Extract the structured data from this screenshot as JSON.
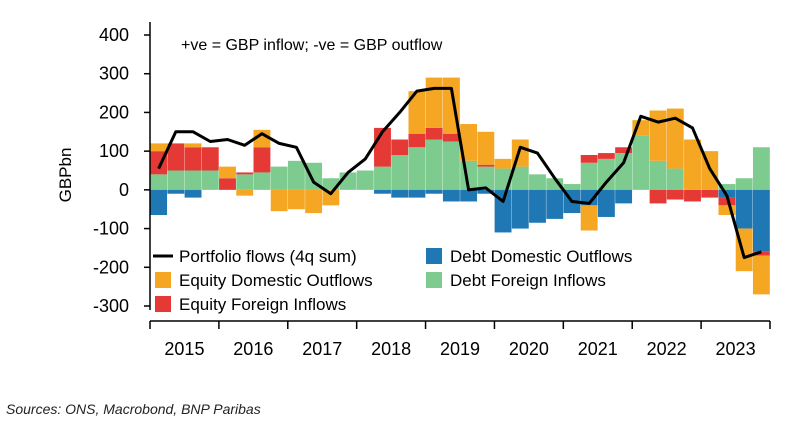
{
  "chart_data": {
    "type": "bar+line",
    "ylabel": "GBPbn",
    "ylim": [
      -300,
      400
    ],
    "yticks": [
      -300,
      -200,
      -100,
      0,
      100,
      200,
      300,
      400
    ],
    "annotation": "+ve = GBP inflow; -ve = GBP outflow",
    "years": [
      "2015",
      "2016",
      "2017",
      "2018",
      "2019",
      "2020",
      "2021",
      "2022",
      "2023"
    ],
    "quarters_first": "2015Q1",
    "colors": {
      "debt_domestic": "#1f78b4",
      "equity_domestic": "#f5a623",
      "debt_foreign": "#7dcb8f",
      "equity_foreign": "#e53935",
      "line": "#000000"
    },
    "legend": [
      {
        "key": "line",
        "label": "Portfolio flows (4q sum)"
      },
      {
        "key": "debt_domestic",
        "label": "Debt Domestic Outflows"
      },
      {
        "key": "equity_domestic",
        "label": "Equity Domestic Outflows"
      },
      {
        "key": "debt_foreign",
        "label": "Debt Foreign Inflows"
      },
      {
        "key": "equity_foreign",
        "label": "Equity Foreign Inflows"
      }
    ],
    "series": [
      {
        "name": "Debt Foreign Inflows",
        "key": "debt_foreign",
        "values": [
          40,
          50,
          50,
          50,
          0,
          40,
          45,
          60,
          75,
          70,
          30,
          45,
          50,
          60,
          90,
          110,
          130,
          125,
          75,
          60,
          55,
          60,
          40,
          30,
          15,
          70,
          80,
          95,
          140,
          75,
          55,
          0,
          0,
          15,
          30,
          110
        ]
      },
      {
        "name": "Debt Domestic Outflows",
        "key": "debt_domestic",
        "values": [
          -65,
          -10,
          -20,
          0,
          0,
          0,
          0,
          0,
          0,
          0,
          0,
          0,
          0,
          -10,
          -20,
          -20,
          -10,
          -30,
          -30,
          -10,
          -110,
          -100,
          -85,
          -75,
          -60,
          -40,
          -70,
          -35,
          0,
          0,
          0,
          0,
          0,
          -20,
          -100,
          -160
        ]
      },
      {
        "name": "Equity Foreign Inflows",
        "key": "equity_foreign",
        "values": [
          60,
          70,
          60,
          60,
          30,
          5,
          65,
          0,
          0,
          0,
          0,
          0,
          0,
          100,
          40,
          35,
          30,
          20,
          0,
          5,
          0,
          0,
          0,
          0,
          0,
          20,
          15,
          15,
          0,
          -35,
          -25,
          -30,
          -20,
          -20,
          0,
          -10
        ]
      },
      {
        "name": "Equity Domestic Outflows",
        "key": "equity_domestic",
        "values": [
          20,
          0,
          10,
          0,
          30,
          -15,
          45,
          -55,
          -50,
          -60,
          -40,
          0,
          0,
          0,
          0,
          110,
          130,
          145,
          95,
          85,
          25,
          70,
          0,
          0,
          0,
          -65,
          0,
          0,
          40,
          130,
          155,
          130,
          100,
          -25,
          -110,
          -100
        ]
      },
      {
        "name": "Portfolio flows (4q sum)",
        "key": "line",
        "type": "line",
        "values": [
          55,
          150,
          150,
          125,
          130,
          115,
          145,
          120,
          110,
          20,
          -10,
          45,
          80,
          150,
          200,
          255,
          262,
          262,
          0,
          5,
          -30,
          110,
          95,
          30,
          -30,
          -35,
          20,
          70,
          190,
          175,
          185,
          160,
          55,
          -15,
          -175,
          -160
        ]
      }
    ]
  },
  "source": "Sources: ONS, Macrobond, BNP Paribas"
}
